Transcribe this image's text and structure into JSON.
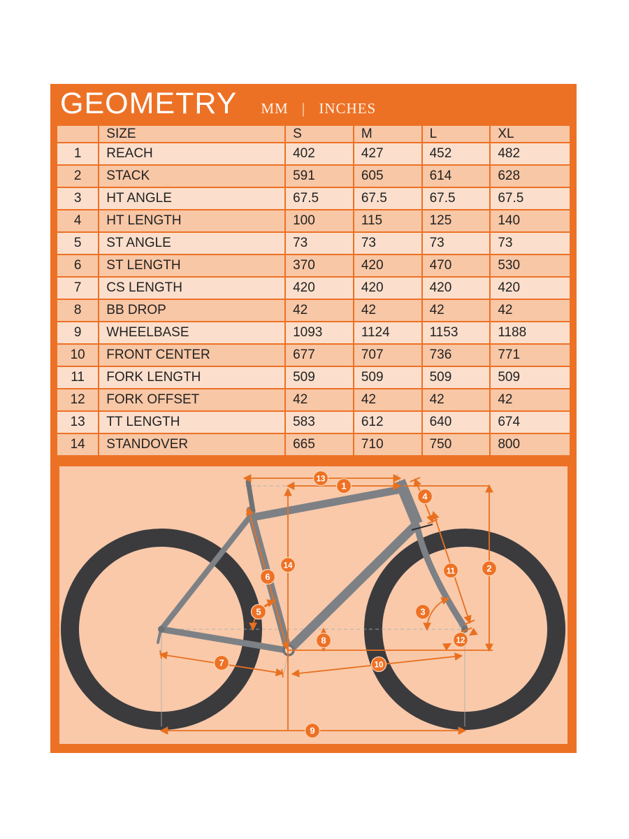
{
  "title": "GEOMETRY",
  "units_label": "MM | INCHES",
  "colors": {
    "card_orange": "#ed7125",
    "measure_line_orange": "#e8701f",
    "marker_orange": "#ee7124",
    "row_light": "#fbdfcc",
    "row_dark": "#f8c7a6",
    "diagram_background": "#f9c9aa",
    "wheel_dark": "#3b3b3d",
    "frame_gray": "#7d8185",
    "table_text": "#222222"
  },
  "table": {
    "columns": [
      "",
      "SIZE",
      "S",
      "M",
      "L",
      "XL"
    ],
    "rows": [
      {
        "num": "1",
        "label": "REACH",
        "values": [
          "402",
          "427",
          "452",
          "482"
        ]
      },
      {
        "num": "2",
        "label": "STACK",
        "values": [
          "591",
          "605",
          "614",
          "628"
        ]
      },
      {
        "num": "3",
        "label": "HT ANGLE",
        "values": [
          "67.5",
          "67.5",
          "67.5",
          "67.5"
        ]
      },
      {
        "num": "4",
        "label": "HT LENGTH",
        "values": [
          "100",
          "115",
          "125",
          "140"
        ]
      },
      {
        "num": "5",
        "label": "ST ANGLE",
        "values": [
          "73",
          "73",
          "73",
          "73"
        ]
      },
      {
        "num": "6",
        "label": "ST LENGTH",
        "values": [
          "370",
          "420",
          "470",
          "530"
        ]
      },
      {
        "num": "7",
        "label": "CS LENGTH",
        "values": [
          "420",
          "420",
          "420",
          "420"
        ]
      },
      {
        "num": "8",
        "label": "BB DROP",
        "values": [
          "42",
          "42",
          "42",
          "42"
        ]
      },
      {
        "num": "9",
        "label": "WHEELBASE",
        "values": [
          "1093",
          "1124",
          "1153",
          "1188"
        ]
      },
      {
        "num": "10",
        "label": "FRONT CENTER",
        "values": [
          "677",
          "707",
          "736",
          "771"
        ]
      },
      {
        "num": "11",
        "label": "FORK LENGTH",
        "values": [
          "509",
          "509",
          "509",
          "509"
        ]
      },
      {
        "num": "12",
        "label": "FORK OFFSET",
        "values": [
          "42",
          "42",
          "42",
          "42"
        ]
      },
      {
        "num": "13",
        "label": "TT LENGTH",
        "values": [
          "583",
          "612",
          "640",
          "674"
        ]
      },
      {
        "num": "14",
        "label": "STANDOVER",
        "values": [
          "665",
          "710",
          "750",
          "800"
        ]
      }
    ]
  },
  "diagram": {
    "markers": [
      "1",
      "2",
      "3",
      "4",
      "5",
      "6",
      "7",
      "8",
      "9",
      "10",
      "11",
      "12",
      "13",
      "14"
    ]
  }
}
